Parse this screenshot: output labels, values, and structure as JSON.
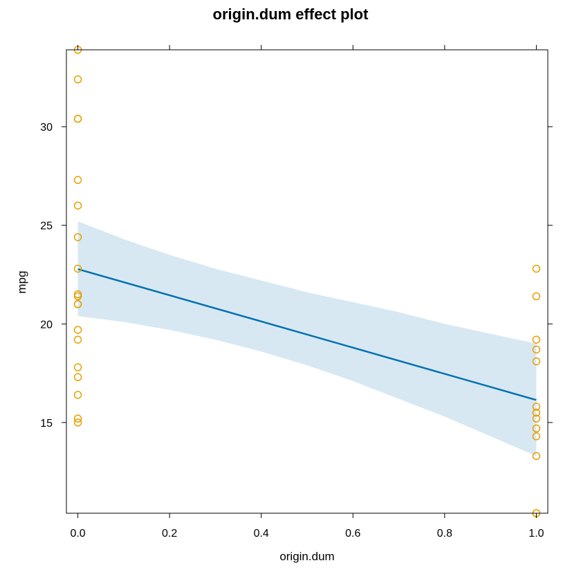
{
  "chart_data": {
    "type": "scatter",
    "title": "origin.dum effect plot",
    "xlabel": "origin.dum",
    "ylabel": "mpg",
    "xlim": [
      -0.025,
      1.025
    ],
    "ylim": [
      10.4,
      33.9
    ],
    "x_ticks": [
      "0.0",
      "0.2",
      "0.4",
      "0.6",
      "0.8",
      "1.0"
    ],
    "y_ticks": [
      "15",
      "20",
      "25",
      "30"
    ],
    "colors": {
      "points": "#e6a000",
      "fit_line": "#0072b2",
      "confidence_band": "#d8e8f2"
    },
    "points": {
      "x": [
        0,
        0,
        0,
        0,
        0,
        0,
        0,
        0,
        0,
        0,
        0,
        0,
        0,
        0,
        0,
        0,
        0,
        0,
        0,
        1,
        1,
        1,
        1,
        1,
        1,
        1,
        1,
        1,
        1,
        1,
        1,
        1
      ],
      "y": [
        33.9,
        32.4,
        30.4,
        30.4,
        27.3,
        26.0,
        24.4,
        22.8,
        21.5,
        21.4,
        21.0,
        21.0,
        19.7,
        19.2,
        17.8,
        17.3,
        16.4,
        15.2,
        15.0,
        22.8,
        21.4,
        19.2,
        18.7,
        18.1,
        15.8,
        15.5,
        15.2,
        14.7,
        14.3,
        13.3,
        10.4,
        10.4
      ]
    },
    "fit": {
      "name": "fit",
      "x": [
        0,
        1
      ],
      "y": [
        22.78,
        16.14
      ]
    },
    "confidence_band": {
      "x": [
        0,
        0.1,
        0.2,
        0.3,
        0.4,
        0.5,
        0.6,
        0.7,
        0.8,
        0.9,
        1.0
      ],
      "lower": [
        20.4,
        20.1,
        19.7,
        19.2,
        18.6,
        17.9,
        17.1,
        16.2,
        15.3,
        14.3,
        13.3
      ],
      "upper": [
        25.2,
        24.3,
        23.5,
        22.8,
        22.2,
        21.6,
        21.1,
        20.6,
        20.0,
        19.5,
        19.0
      ]
    },
    "grid": false,
    "legend": "none"
  }
}
